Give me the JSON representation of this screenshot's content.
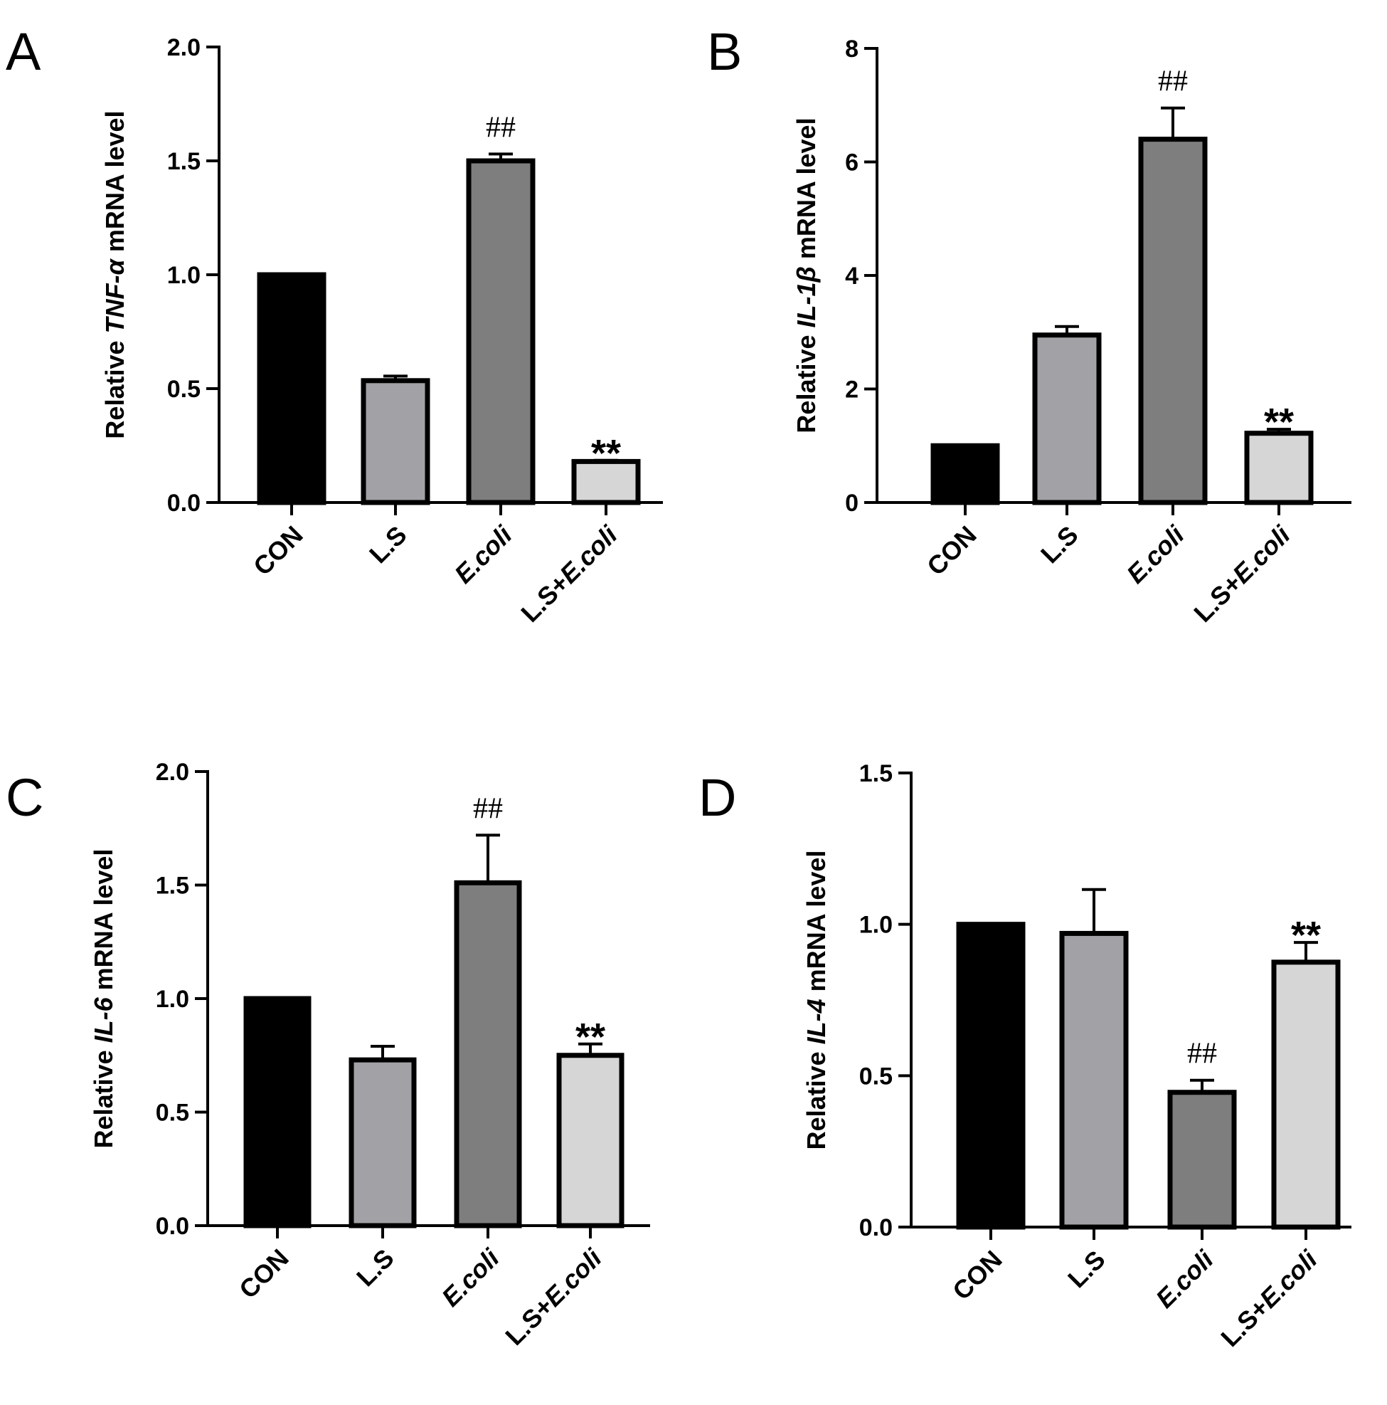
{
  "chart_data": [
    {
      "panel": "A",
      "type": "bar",
      "gene": "TNF-α",
      "ylabel_prefix": "Relative ",
      "ylabel_suffix": " mRNA level",
      "categories": [
        "CON",
        "L.S",
        "E.coli",
        "L.S+E.coli"
      ],
      "values": [
        1.0,
        0.535,
        1.5,
        0.18
      ],
      "errors": [
        0,
        0.02,
        0.03,
        0.005
      ],
      "significance": [
        "",
        "",
        "##",
        "**"
      ],
      "ylim": [
        0,
        2.0
      ],
      "yticks": [
        0.0,
        0.5,
        1.0,
        1.5,
        2.0
      ],
      "ytick_labels": [
        "0.0",
        "0.5",
        "1.0",
        "1.5",
        "2.0"
      ]
    },
    {
      "panel": "B",
      "type": "bar",
      "gene": "IL-1β",
      "ylabel_prefix": "Relative ",
      "ylabel_suffix": " mRNA level",
      "categories": [
        "CON",
        "L.S",
        "E.coli",
        "L.S+E.coli"
      ],
      "values": [
        1.0,
        2.95,
        6.4,
        1.22
      ],
      "errors": [
        0,
        0.15,
        0.55,
        0.07
      ],
      "significance": [
        "",
        "",
        "##",
        "**"
      ],
      "ylim": [
        0,
        8
      ],
      "yticks": [
        0,
        2,
        4,
        6,
        8
      ],
      "ytick_labels": [
        "0",
        "2",
        "4",
        "6",
        "8"
      ]
    },
    {
      "panel": "C",
      "type": "bar",
      "gene": "IL-6",
      "ylabel_prefix": "Relative ",
      "ylabel_suffix": " mRNA level",
      "categories": [
        "CON",
        "L.S",
        "E.coli",
        "L.S+E.coli"
      ],
      "values": [
        1.0,
        0.73,
        1.51,
        0.75
      ],
      "errors": [
        0,
        0.06,
        0.21,
        0.05
      ],
      "significance": [
        "",
        "",
        "##",
        "**"
      ],
      "ylim": [
        0,
        2.0
      ],
      "yticks": [
        0.0,
        0.5,
        1.0,
        1.5,
        2.0
      ],
      "ytick_labels": [
        "0.0",
        "0.5",
        "1.0",
        "1.5",
        "2.0"
      ]
    },
    {
      "panel": "D",
      "type": "bar",
      "gene": "IL-4",
      "ylabel_prefix": "Relative ",
      "ylabel_suffix": " mRNA level",
      "categories": [
        "CON",
        "L.S",
        "E.coli",
        "L.S+E.coli"
      ],
      "values": [
        1.0,
        0.97,
        0.445,
        0.875
      ],
      "errors": [
        0,
        0.145,
        0.04,
        0.065
      ],
      "significance": [
        "",
        "",
        "##",
        "**"
      ],
      "ylim": [
        0,
        1.5
      ],
      "yticks": [
        0.0,
        0.5,
        1.0,
        1.5
      ],
      "ytick_labels": [
        "0.0",
        "0.5",
        "1.0",
        "1.5"
      ]
    }
  ],
  "colors": {
    "CON": "#000000",
    "L.S": "#a2a2a6",
    "E.coli": "#7e7e7e",
    "L.S+E.coli": "#d6d6d6",
    "stroke": "#000000"
  }
}
